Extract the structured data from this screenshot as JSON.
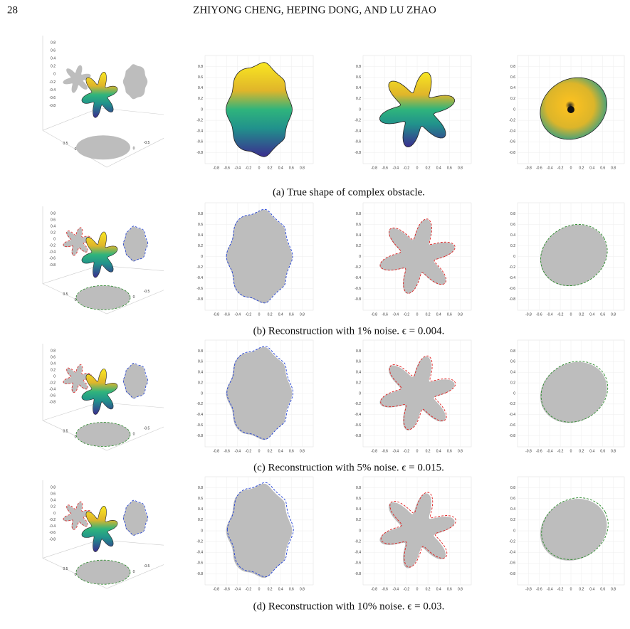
{
  "header": {
    "page_number": "28",
    "authors": "ZHIYONG CHENG, HEPING DONG, AND LU ZHAO"
  },
  "axis_ticks": {
    "y": [
      "0.8",
      "0.6",
      "0.4",
      "0.2",
      "0",
      "-0.2",
      "-0.4",
      "-0.6",
      "-0.8"
    ],
    "x_descending": [
      "0.8",
      "0.6",
      "0.4",
      "0.2",
      "0",
      "-0.2",
      "-0.4",
      "-0.6",
      "-0.8"
    ],
    "x_ascending": [
      "-0.8",
      "-0.6",
      "-0.4",
      "-0.2",
      "0",
      "0.2",
      "0.4",
      "0.6",
      "0.8"
    ],
    "x_3d": [
      "0.5",
      "0",
      "-0.5"
    ]
  },
  "rows": [
    {
      "caption": "(a) True shape of complex obstacle."
    },
    {
      "caption": "(b) Reconstruction with 1% noise. ϵ = 0.004."
    },
    {
      "caption": "(c) Reconstruction with 5% noise. ϵ = 0.015."
    },
    {
      "caption": "(d) Reconstruction with 10% noise. ϵ = 0.03."
    }
  ]
}
